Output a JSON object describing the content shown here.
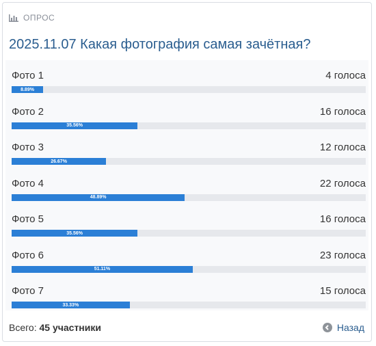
{
  "header": {
    "label": "ОПРОС",
    "icon": "bar-chart-icon"
  },
  "poll": {
    "title": "2025.11.07 Какая фотография самая зачётная?",
    "options": [
      {
        "name": "Фото 1",
        "votes": "4 голоса",
        "percent": 8.89,
        "percent_label": "8.89%"
      },
      {
        "name": "Фото 2",
        "votes": "16 голоса",
        "percent": 35.56,
        "percent_label": "35.56%"
      },
      {
        "name": "Фото 3",
        "votes": "12 голоса",
        "percent": 26.67,
        "percent_label": "26.67%"
      },
      {
        "name": "Фото 4",
        "votes": "22 голоса",
        "percent": 48.89,
        "percent_label": "48.89%"
      },
      {
        "name": "Фото 5",
        "votes": "16 голоса",
        "percent": 35.56,
        "percent_label": "35.56%"
      },
      {
        "name": "Фото 6",
        "votes": "23 голоса",
        "percent": 51.11,
        "percent_label": "51.11%"
      },
      {
        "name": "Фото 7",
        "votes": "15 голоса",
        "percent": 33.33,
        "percent_label": "33.33%"
      }
    ]
  },
  "footer": {
    "total_label": "Всего: ",
    "total_value": "45 участники",
    "back_label": "Назад",
    "back_icon": "arrow-left-circle-icon"
  },
  "colors": {
    "bar": "#2b7fd6",
    "track": "#e6e8ec",
    "title": "#2a5d8f"
  }
}
